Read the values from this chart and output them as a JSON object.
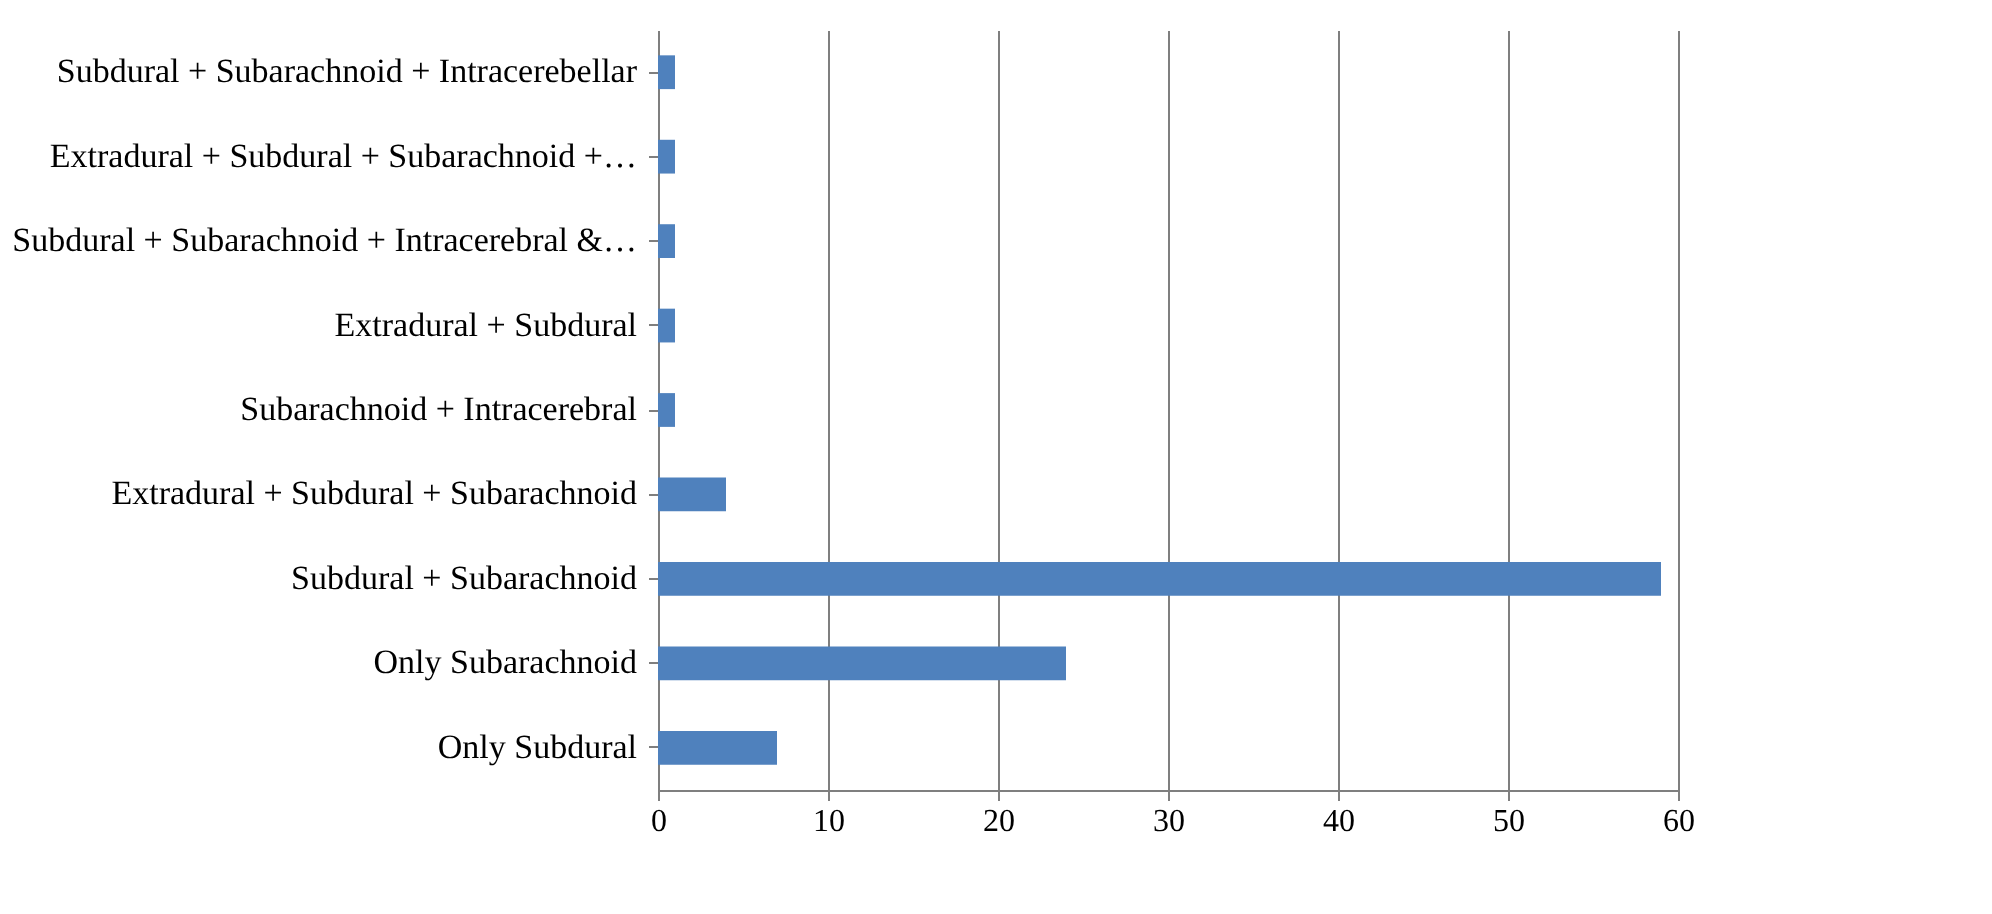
{
  "chart_data": {
    "type": "bar",
    "orientation": "horizontal",
    "categories": [
      "Subdural + Subarachnoid + Intracerebellar",
      "Extradural + Subdural + Subarachnoid +…",
      "Subdural + Subarachnoid + Intracerebral &…",
      "Extradural + Subdural",
      "Subarachnoid + Intracerebral",
      "Extradural + Subdural + Subarachnoid",
      "Subdural + Subarachnoid",
      "Only Subarachnoid",
      "Only Subdural"
    ],
    "values": [
      1,
      1,
      1,
      1,
      1,
      4,
      59,
      24,
      7
    ],
    "color": "#4f81bd",
    "xlim": [
      0,
      60
    ],
    "xticks": [
      0,
      10,
      20,
      30,
      40,
      50,
      60
    ],
    "grid": "x"
  }
}
